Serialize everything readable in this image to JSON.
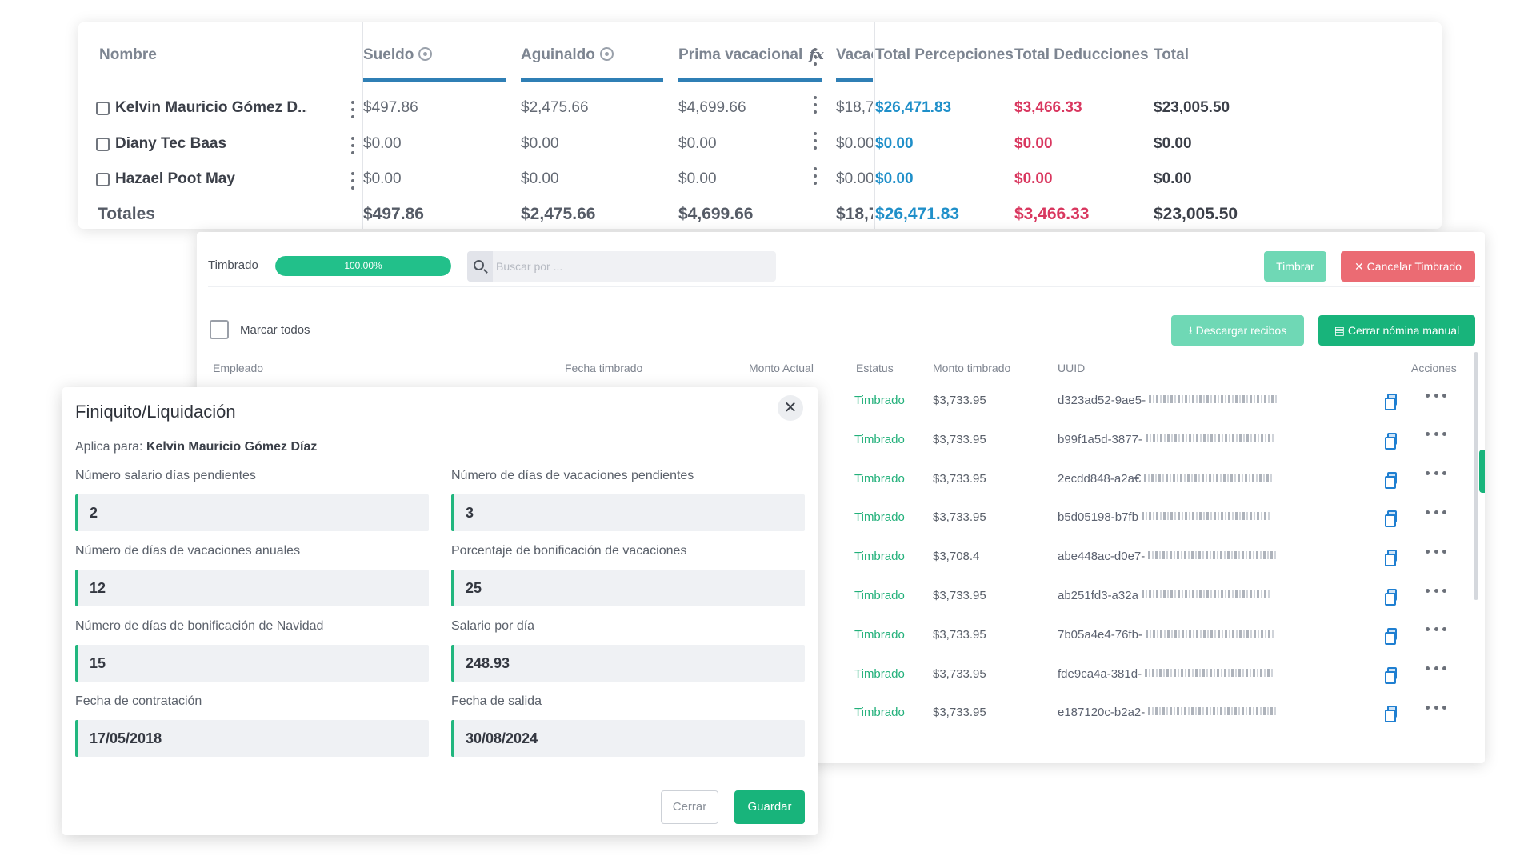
{
  "payroll_table": {
    "headers": {
      "nombre": "Nombre",
      "sueldo": "Sueldo",
      "aguinaldo": "Aguinaldo",
      "prima": "Prima vacacional",
      "vacac": "Vacac",
      "total_percepciones": "Total Percepciones",
      "total_deducciones": "Total Deducciones",
      "total": "Total"
    },
    "rows": [
      {
        "nombre": "Kelvin Mauricio Gómez D...",
        "sueldo": "$497.86",
        "aguinaldo": "$2,475.66",
        "prima": "$4,699.66",
        "vacac": "$18,7",
        "percepciones": "$26,471.83",
        "deducciones": "$3,466.33",
        "total": "$23,005.50"
      },
      {
        "nombre": "Diany Tec Baas",
        "sueldo": "$0.00",
        "aguinaldo": "$0.00",
        "prima": "$0.00",
        "vacac": "$0.00",
        "percepciones": "$0.00",
        "deducciones": "$0.00",
        "total": "$0.00"
      },
      {
        "nombre": "Hazael Poot May",
        "sueldo": "$0.00",
        "aguinaldo": "$0.00",
        "prima": "$0.00",
        "vacac": "$0.00",
        "percepciones": "$0.00",
        "deducciones": "$0.00",
        "total": "$0.00"
      }
    ],
    "totals": {
      "label": "Totales",
      "sueldo": "$497.86",
      "aguinaldo": "$2,475.66",
      "prima": "$4,699.66",
      "vacac": "$18,7",
      "percepciones": "$26,471.83",
      "deducciones": "$3,466.33",
      "total": "$23,005.50"
    }
  },
  "timbrado_panel": {
    "label": "Timbrado",
    "progress_text": "100.00%",
    "progress_value": 1.0,
    "search_placeholder": "Buscar por ...",
    "timbrar_label": "Timbrar",
    "cancelar_label": "✕ Cancelar Timbrado",
    "marcar_todos": "Marcar todos",
    "descargar_label": "Descargar recibos",
    "cerrar_manual_label": "Cerrar nómina manual",
    "columns": {
      "empleado": "Empleado",
      "fecha": "Fecha timbrado",
      "monto_actual": "Monto Actual",
      "estatus": "Estatus",
      "monto_timbrado": "Monto timbrado",
      "uuid": "UUID",
      "acciones": "Acciones"
    },
    "rows": [
      {
        "estatus": "Timbrado",
        "monto": "$3,733.95",
        "uuid": "d323ad52-9ae5-"
      },
      {
        "estatus": "Timbrado",
        "monto": "$3,733.95",
        "uuid": "b99f1a5d-3877-"
      },
      {
        "estatus": "Timbrado",
        "monto": "$3,733.95",
        "uuid": "2ecdd848-a2a€"
      },
      {
        "estatus": "Timbrado",
        "monto": "$3,733.95",
        "uuid": "b5d05198-b7fb"
      },
      {
        "estatus": "Timbrado",
        "monto": "$3,708.4",
        "uuid": "abe448ac-d0e7-"
      },
      {
        "estatus": "Timbrado",
        "monto": "$3,733.95",
        "uuid": "ab251fd3-a32a"
      },
      {
        "estatus": "Timbrado",
        "monto": "$3,733.95",
        "uuid": "7b05a4e4-76fb-"
      },
      {
        "estatus": "Timbrado",
        "monto": "$3,733.95",
        "uuid": "fde9ca4a-381d-"
      },
      {
        "estatus": "Timbrado",
        "monto": "$3,733.95",
        "uuid": "e187120c-b2a2-"
      }
    ]
  },
  "modal": {
    "title": "Finiquito/Liquidación",
    "close_glyph": "✕",
    "applies_label": "Aplica para:",
    "applies_name": "Kelvin Mauricio Gómez Díaz",
    "fields": [
      {
        "label": "Número salario días pendientes",
        "value": "2"
      },
      {
        "label": "Número de días de vacaciones pendientes",
        "value": "3"
      },
      {
        "label": "Número de días de vacaciones anuales",
        "value": "12"
      },
      {
        "label": "Porcentaje de bonificación de vacaciones",
        "value": "25"
      },
      {
        "label": "Número de días de bonificación de Navidad",
        "value": "15"
      },
      {
        "label": "Salario por día",
        "value": "248.93"
      },
      {
        "label": "Fecha de contratación",
        "value": "17/05/2018"
      },
      {
        "label": "Fecha de salida",
        "value": "30/08/2024"
      }
    ],
    "cerrar_label": "Cerrar",
    "guardar_label": "Guardar"
  },
  "colors": {
    "accent_green": "#18b47b",
    "accent_red": "#eb6b73",
    "blue_amount": "#1f8fc9",
    "red_amount": "#d9375f",
    "header_underline": "#2f7fb5"
  }
}
